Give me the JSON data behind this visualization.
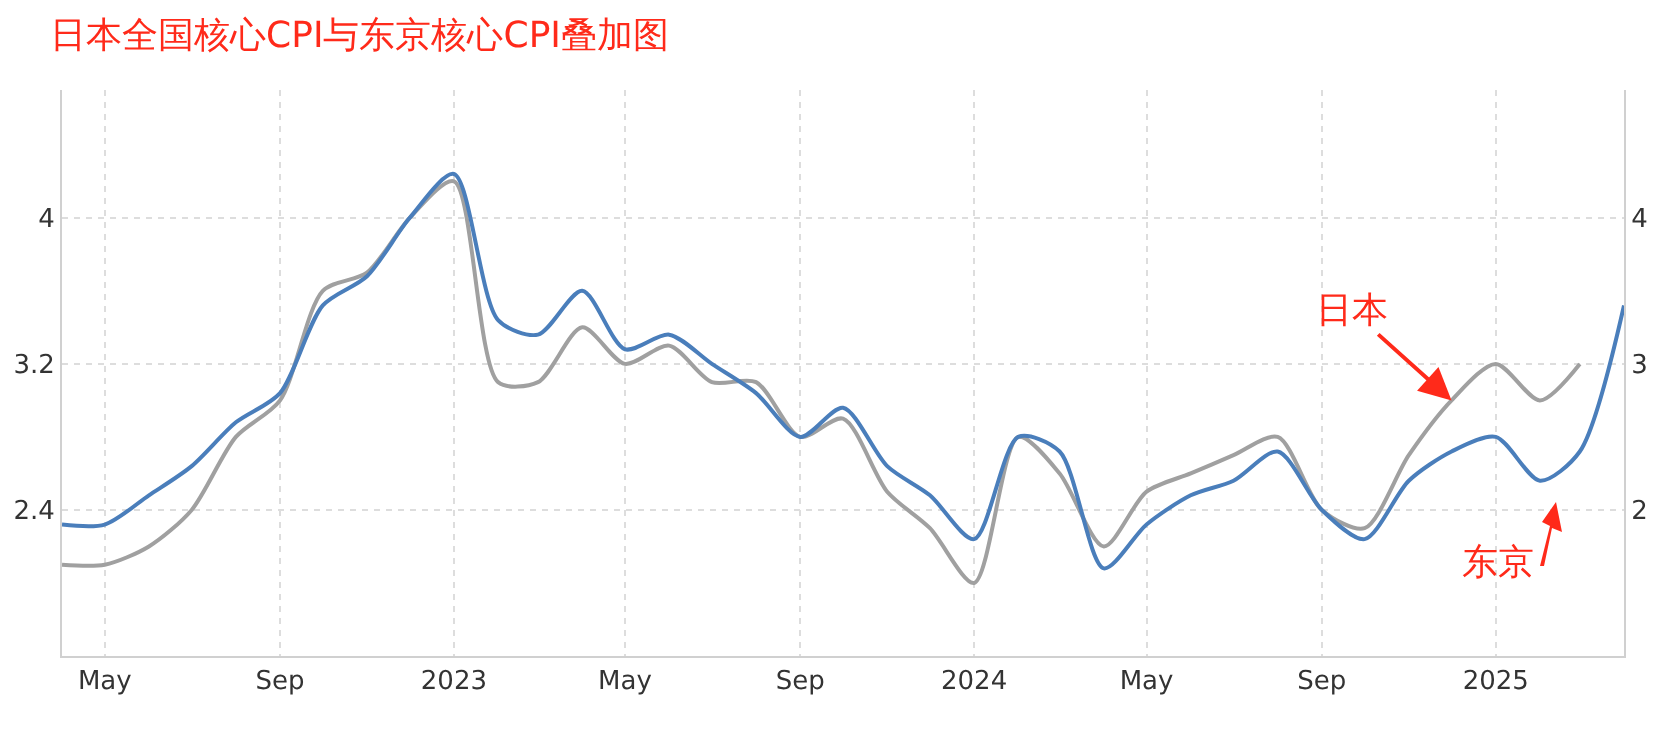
{
  "chart_data": {
    "type": "line",
    "title": "日本全国核心CPI与东京核心CPI叠加图",
    "x": [
      "2022-04",
      "2022-05",
      "2022-06",
      "2022-07",
      "2022-08",
      "2022-09",
      "2022-10",
      "2022-11",
      "2022-12",
      "2023-01",
      "2023-02",
      "2023-03",
      "2023-04",
      "2023-05",
      "2023-06",
      "2023-07",
      "2023-08",
      "2023-09",
      "2023-10",
      "2023-11",
      "2023-12",
      "2024-01",
      "2024-02",
      "2024-03",
      "2024-04",
      "2024-05",
      "2024-06",
      "2024-07",
      "2024-08",
      "2024-09",
      "2024-10",
      "2024-11",
      "2024-12",
      "2025-01",
      "2025-02",
      "2025-03",
      "2025-04"
    ],
    "series": [
      {
        "color": "#a0a0a0",
        "axis": "y",
        "values": [
          2.1,
          2.1,
          2.2,
          2.4,
          2.8,
          3.0,
          3.6,
          3.7,
          4.0,
          4.2,
          3.1,
          3.1,
          3.4,
          3.2,
          3.3,
          3.1,
          3.1,
          2.8,
          2.9,
          2.5,
          2.3,
          2.0,
          2.8,
          2.6,
          2.2,
          2.5,
          2.6,
          2.7,
          2.8,
          2.4,
          2.3,
          2.7,
          3.0,
          3.2,
          3.0,
          3.2,
          null
        ]
      },
      {
        "color": "#4a7ebb",
        "axis": "y2",
        "values": [
          1.9,
          1.9,
          2.1,
          2.3,
          2.6,
          2.8,
          3.4,
          3.6,
          4.0,
          4.3,
          3.3,
          3.2,
          3.5,
          3.1,
          3.2,
          3.0,
          2.8,
          2.5,
          2.7,
          2.3,
          2.1,
          1.8,
          2.5,
          2.4,
          1.6,
          1.9,
          2.1,
          2.2,
          2.4,
          2.0,
          1.8,
          2.2,
          2.4,
          2.5,
          2.2,
          2.4,
          3.4
        ]
      }
    ],
    "xlim": [
      "2022-04-01",
      "2025-04-01"
    ],
    "xticks": [
      {
        "value": "2022-05-01",
        "label": "May"
      },
      {
        "value": "2022-09-01",
        "label": "Sep"
      },
      {
        "value": "2023-01-01",
        "label": "2023"
      },
      {
        "value": "2023-05-01",
        "label": "May"
      },
      {
        "value": "2023-09-01",
        "label": "Sep"
      },
      {
        "value": "2024-01-01",
        "label": "2024"
      },
      {
        "value": "2024-05-01",
        "label": "May"
      },
      {
        "value": "2024-09-01",
        "label": "Sep"
      },
      {
        "value": "2025-01-01",
        "label": "2025"
      }
    ],
    "ylim": [
      1.6,
      4.7
    ],
    "yticks": [
      2.4,
      3.2,
      4
    ],
    "y2lim": [
      1.0,
      4.875
    ],
    "y2ticks": [
      2,
      3,
      4
    ],
    "grid": true,
    "marker": "none",
    "line_style": "solid",
    "annotations": [
      {
        "text": "日本",
        "x": "2024-12",
        "y": 3.0
      },
      "东京"
    ]
  }
}
